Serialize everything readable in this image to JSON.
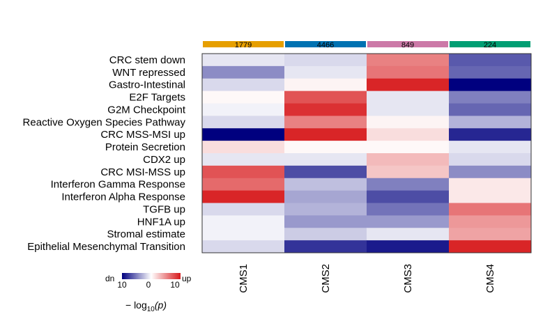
{
  "chart_data": {
    "type": "heatmap",
    "columns": [
      "CMS1",
      "CMS2",
      "CMS3",
      "CMS4"
    ],
    "column_counts": [
      "1779",
      "4466",
      "849",
      "224"
    ],
    "column_colors": [
      "#E69F00",
      "#0072B2",
      "#CC79A7",
      "#009E73"
    ],
    "rows": [
      "CRC stem down",
      "WNT repressed",
      "Gastro-Intestinal",
      "E2F Targets",
      "G2M Checkpoint",
      "Reactive Oxygen Species Pathway",
      "CRC MSS-MSI up",
      "Protein Secretion",
      "CDX2 up",
      "CRC MSI-MSS up",
      "Interferon Gamma Response",
      "Interferon Alpha Response",
      "TGFB up",
      "HNF1A up",
      "Stromal estimate",
      "Epithelial Mesenchymal Transition"
    ],
    "values": [
      [
        -1,
        -1.5,
        5.5,
        -6.5
      ],
      [
        -4.5,
        -1,
        6,
        -6
      ],
      [
        -1.5,
        0.5,
        9.5,
        -10
      ],
      [
        0.3,
        7.5,
        -1,
        -5
      ],
      [
        -0.5,
        9,
        -1,
        -6
      ],
      [
        -1.5,
        5.5,
        0.5,
        -3
      ],
      [
        -10,
        9.5,
        1.5,
        -8.5
      ],
      [
        1.5,
        0.3,
        0.3,
        -1
      ],
      [
        -1,
        -1,
        3,
        -1.5
      ],
      [
        7.5,
        -7,
        2.5,
        -4.5
      ],
      [
        6.5,
        -2.5,
        -5,
        1
      ],
      [
        9.5,
        -3.5,
        -7,
        1
      ],
      [
        -1.5,
        -3,
        -5.5,
        6
      ],
      [
        -0.5,
        -4,
        -4,
        4.5
      ],
      [
        -0.5,
        -2,
        -1,
        4
      ],
      [
        -1.5,
        -8,
        -9,
        9.5
      ]
    ],
    "color_scale": {
      "low": "#00007F",
      "mid": "#FFFFFF",
      "high": "#D7191C",
      "range": [
        -10,
        10
      ]
    },
    "legend": {
      "left_label": "dn",
      "right_label": "up",
      "ticks": [
        "10",
        "0",
        "10"
      ],
      "title_main": "− log",
      "title_sub": "10",
      "title_arg": "(p)"
    }
  }
}
